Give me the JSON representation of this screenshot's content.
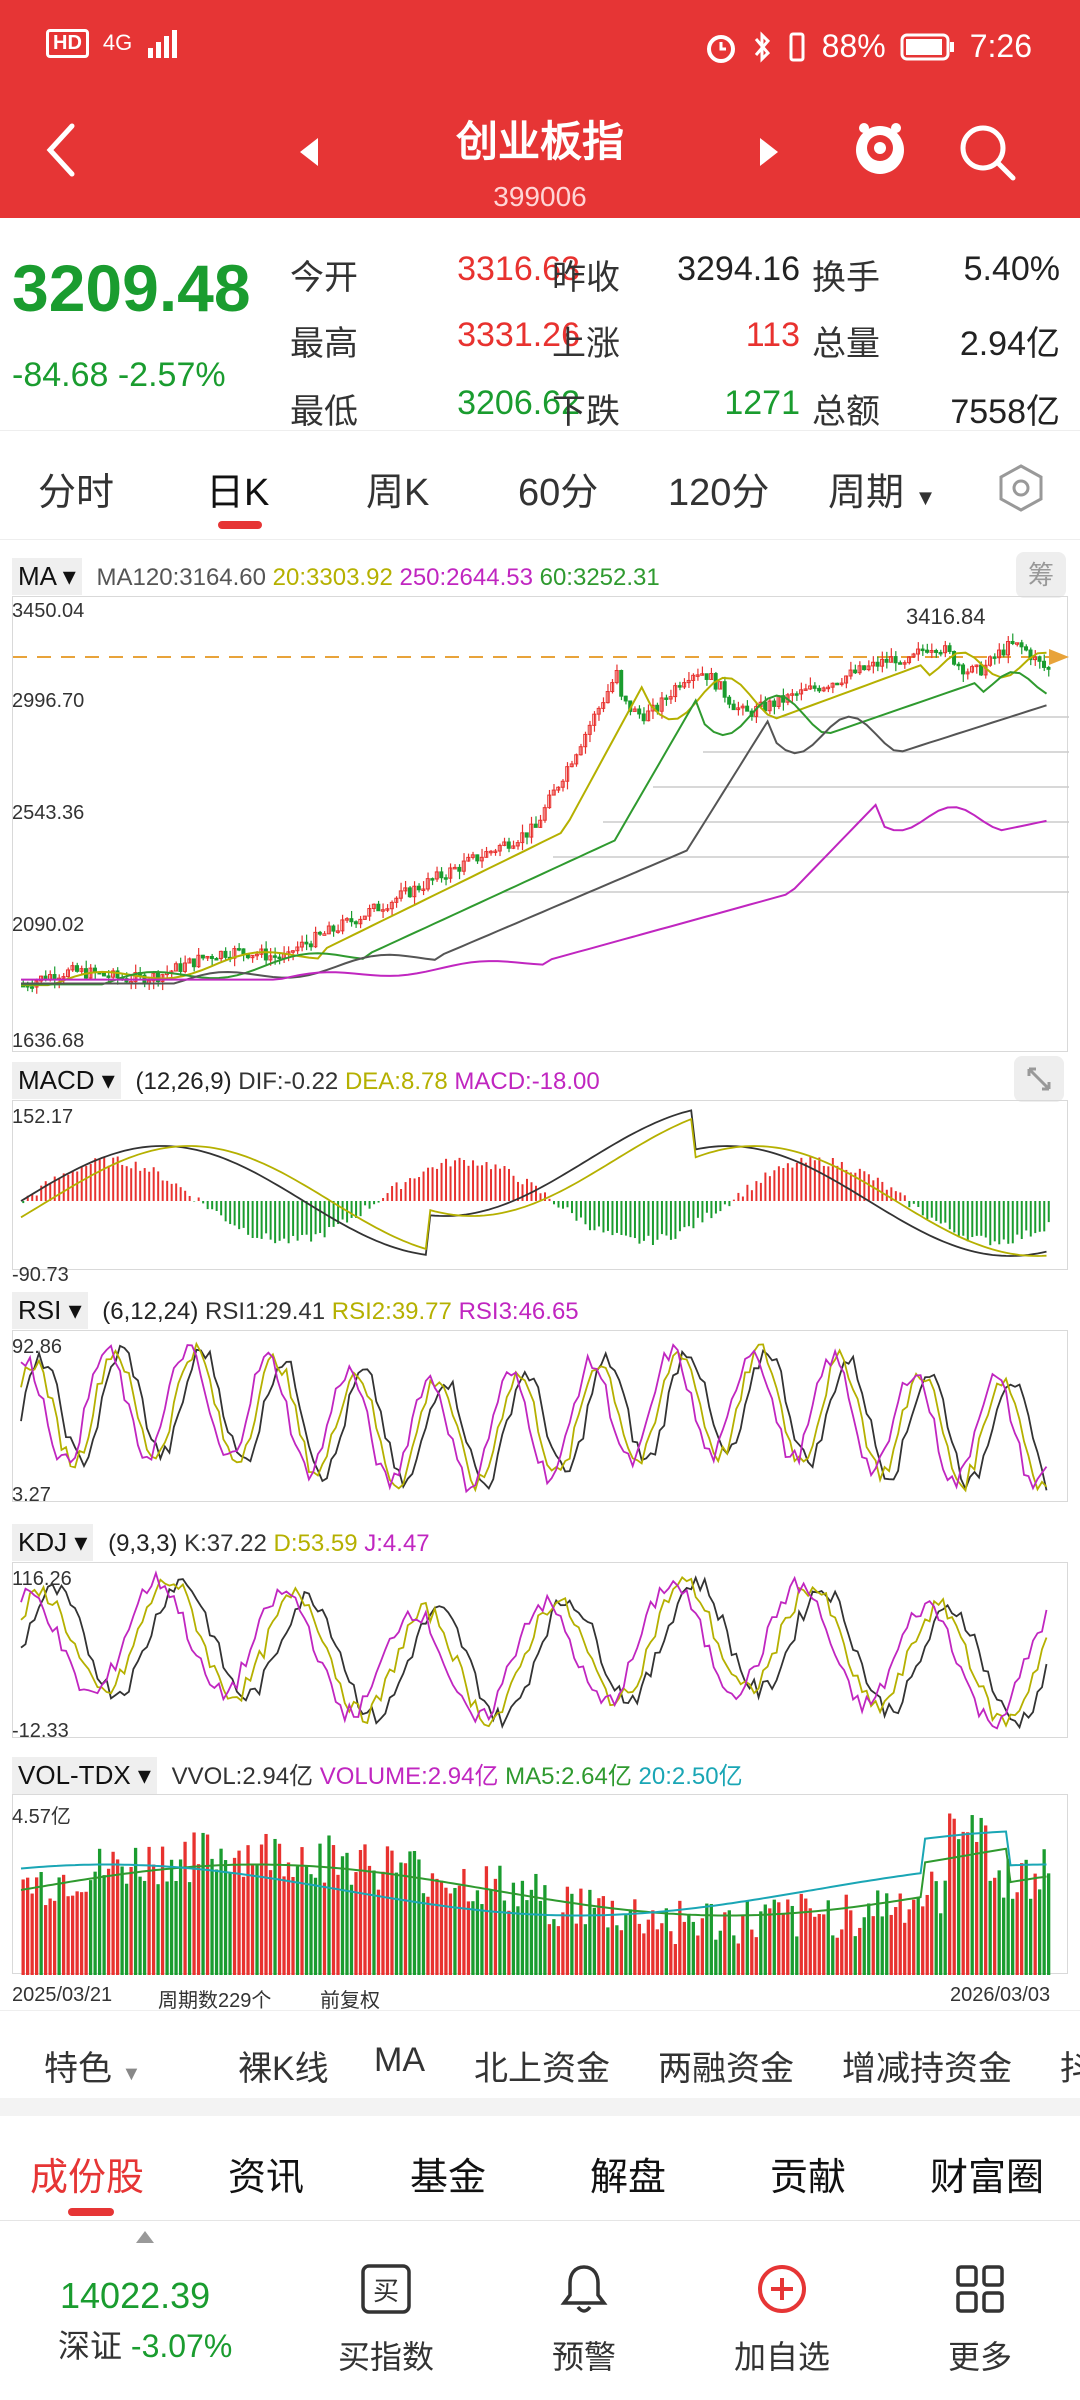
{
  "status": {
    "left_badges": [
      "HD",
      "4G"
    ],
    "battery": "88%",
    "time": "7:26"
  },
  "header": {
    "title": "创业板指",
    "code": "399006"
  },
  "quote": {
    "price": "3209.48",
    "change": "-84.68",
    "change_pct": "-2.57%",
    "cells": [
      {
        "label": "今开",
        "value": "3316.63",
        "color": "red"
      },
      {
        "label": "昨收",
        "value": "3294.16",
        "color": "black"
      },
      {
        "label": "换手",
        "value": "5.40%",
        "color": "black"
      },
      {
        "label": "最高",
        "value": "3331.26",
        "color": "red"
      },
      {
        "label": "上涨",
        "value": "113",
        "color": "red"
      },
      {
        "label": "总量",
        "value": "2.94亿",
        "color": "black"
      },
      {
        "label": "最低",
        "value": "3206.62",
        "color": "green"
      },
      {
        "label": "下跌",
        "value": "1271",
        "color": "green"
      },
      {
        "label": "总额",
        "value": "7558亿",
        "color": "black"
      }
    ]
  },
  "periods": {
    "tabs": [
      "分时",
      "日K",
      "周K",
      "60分",
      "120分",
      "周期"
    ],
    "active": "日K"
  },
  "ma": {
    "name": "MA",
    "values": [
      "MA120:3164.60",
      "20:3303.92",
      "250:2644.53",
      "60:3252.31"
    ],
    "chip": "筹",
    "y_ticks": [
      "3450.04",
      "2996.70",
      "2543.36",
      "2090.02",
      "1636.68"
    ],
    "hi_label": "3416.84"
  },
  "macd": {
    "name": "MACD",
    "params": "(12,26,9)",
    "dif": "DIF:-0.22",
    "dea": "DEA:8.78",
    "macd": "MACD:-18.00",
    "y_ticks": [
      "152.17",
      "-90.73"
    ]
  },
  "rsi": {
    "name": "RSI",
    "params": "(6,12,24)",
    "rsi1": "RSI1:29.41",
    "rsi2": "RSI2:39.77",
    "rsi3": "RSI3:46.65",
    "y_ticks": [
      "92.86",
      "3.27"
    ]
  },
  "kdj": {
    "name": "KDJ",
    "params": "(9,3,3)",
    "k": "K:37.22",
    "d": "D:53.59",
    "j": "J:4.47",
    "y_ticks": [
      "116.26",
      "-12.33"
    ]
  },
  "vol": {
    "name": "VOL-TDX",
    "vvol": "VVOL:2.94亿",
    "volume": "VOLUME:2.94亿",
    "ma5": "MA5:2.64亿",
    "ma20": "20:2.50亿",
    "y_tick": "4.57亿"
  },
  "axis_footer": {
    "start": "2025/03/21",
    "count": "周期数229个",
    "adjust": "前复权",
    "end": "2026/03/03"
  },
  "features": [
    "特色",
    "裸K线",
    "MA",
    "北上资金",
    "两融资金",
    "增减持资金",
    "抖"
  ],
  "bottom_tabs": [
    "成份股",
    "资讯",
    "基金",
    "解盘",
    "贡献",
    "财富圈"
  ],
  "footer": {
    "index_value": "14022.39",
    "index_name": "深证",
    "index_pct": "-3.07%",
    "actions": [
      "买指数",
      "预警",
      "加自选",
      "更多"
    ]
  },
  "colors": {
    "header_red": "#e63535",
    "up_red": "#e8322f",
    "down_green": "#1a9c2f",
    "ma120": "#555555",
    "ma20": "#b5b000",
    "ma250": "#c026c0",
    "ma60": "#2f9a2f"
  }
}
